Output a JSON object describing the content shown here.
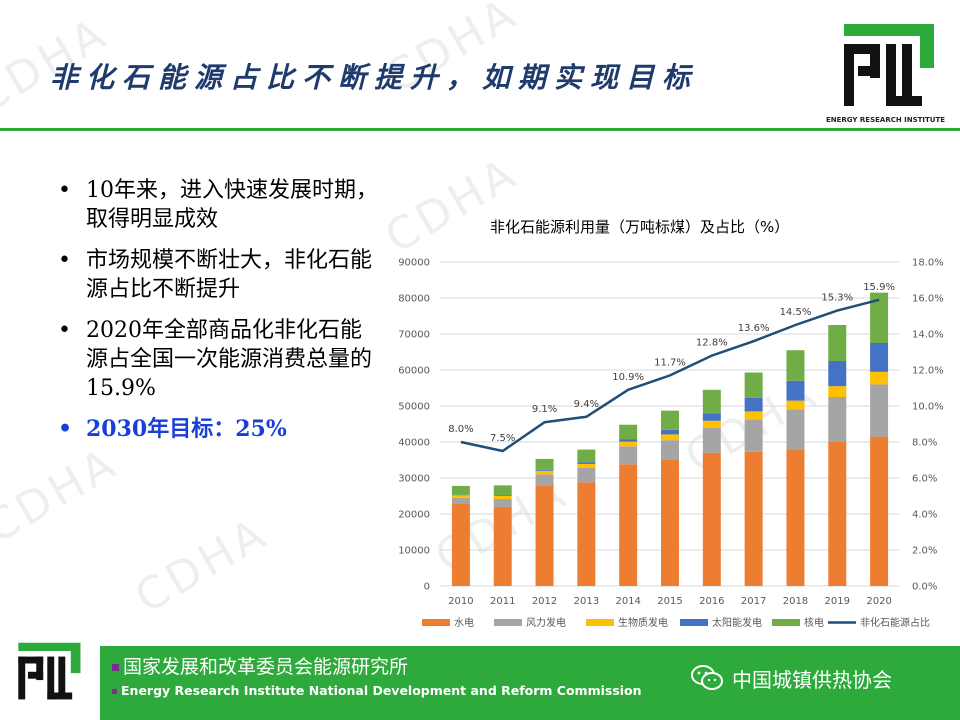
{
  "header": {
    "title": "非化石能源占比不断提升，如期实现目标",
    "logo_caption": "ENERGY RESEARCH INSTITUTE"
  },
  "bullets": [
    {
      "text": "10年来，进入快速发展时期，取得明显成效",
      "highlight": false
    },
    {
      "text": "市场规模不断壮大，非化石能源占比不断提升",
      "highlight": false
    },
    {
      "text": "2020年全部商品化非化石能源占全国一次能源消费总量的15.9%",
      "highlight": false
    },
    {
      "text": "2030年目标：25%",
      "highlight": true
    }
  ],
  "bullet_glyph": "•",
  "watermark": "CDHA",
  "footer": {
    "org_cn": "国家发展和改革委员会能源研究所",
    "org_en": "Energy Research Institute National Development and Reform Commission",
    "association": "中国城镇供热协会"
  },
  "colors": {
    "accent": "#2eaa3c",
    "title": "#1f3b6e",
    "highlight": "#1a3fd8"
  },
  "chart_data": {
    "type": "bar",
    "title": "非化石能源利用量（万吨标煤）及占比（%）",
    "categories": [
      "2010",
      "2011",
      "2012",
      "2013",
      "2014",
      "2015",
      "2016",
      "2017",
      "2018",
      "2019",
      "2020"
    ],
    "series": [
      {
        "name": "水电",
        "color": "#ed7d31",
        "values": [
          23000,
          22000,
          28000,
          28800,
          33800,
          35000,
          37000,
          37300,
          38000,
          40000,
          41500
        ]
      },
      {
        "name": "风力发电",
        "color": "#a5a5a5",
        "values": [
          1500,
          2200,
          3000,
          4000,
          5000,
          5500,
          7000,
          9000,
          11000,
          12500,
          14500
        ]
      },
      {
        "name": "生物质发电",
        "color": "#ffc000",
        "values": [
          700,
          800,
          1000,
          1100,
          1300,
          1600,
          1900,
          2200,
          2500,
          3000,
          3500
        ]
      },
      {
        "name": "太阳能发电",
        "color": "#4472c4",
        "values": [
          100,
          150,
          300,
          500,
          700,
          1300,
          2100,
          3800,
          5500,
          7000,
          8000
        ]
      },
      {
        "name": "核电",
        "color": "#70ad47",
        "values": [
          2500,
          2800,
          3000,
          3500,
          4000,
          5300,
          6500,
          7000,
          8500,
          10000,
          14000
        ]
      }
    ],
    "line": {
      "name": "非化石能源占比",
      "color": "#1f4e79",
      "values": [
        8.0,
        7.5,
        9.1,
        9.4,
        10.9,
        11.7,
        12.8,
        13.6,
        14.5,
        15.3,
        15.9
      ],
      "labels": [
        "8.0%",
        "7.5%",
        "9.1%",
        "9.4%",
        "10.9%",
        "11.7%",
        "12.8%",
        "13.6%",
        "14.5%",
        "15.3%",
        "15.9%"
      ]
    },
    "ylim": [
      0,
      90000
    ],
    "yticks": [
      "0",
      "10000",
      "20000",
      "30000",
      "40000",
      "50000",
      "60000",
      "70000",
      "80000",
      "90000"
    ],
    "y2lim": [
      0,
      18
    ],
    "y2ticks": [
      "0.0%",
      "2.0%",
      "4.0%",
      "6.0%",
      "8.0%",
      "10.0%",
      "12.0%",
      "14.0%",
      "16.0%",
      "18.0%"
    ],
    "legend_position": "bottom",
    "grid": true
  }
}
